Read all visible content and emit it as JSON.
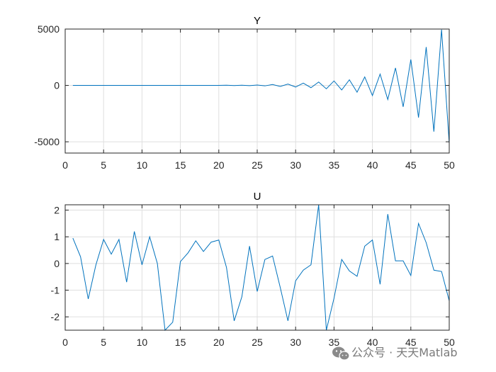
{
  "chart_data": [
    {
      "type": "line",
      "title": "Y",
      "xlabel": "",
      "ylabel": "",
      "xlim": [
        0,
        50
      ],
      "ylim": [
        -6000,
        5000
      ],
      "xticks": [
        0,
        5,
        10,
        15,
        20,
        25,
        30,
        35,
        40,
        45,
        50
      ],
      "yticks": [
        -5000,
        0,
        5000
      ],
      "grid": true,
      "color": "#0072BD",
      "series": [
        {
          "x": [
            1,
            2,
            3,
            4,
            5,
            6,
            7,
            8,
            9,
            10,
            11,
            12,
            13,
            14,
            15,
            16,
            17,
            18,
            19,
            20,
            21,
            22,
            23,
            24,
            25,
            26,
            27,
            28,
            29,
            30,
            31,
            32,
            33,
            34,
            35,
            36,
            37,
            38,
            39,
            40,
            41,
            42,
            43,
            44,
            45,
            46,
            47,
            48,
            49,
            50
          ],
          "values": [
            0,
            0,
            0,
            0,
            0,
            0,
            0,
            0,
            0,
            0,
            0,
            0,
            0,
            0,
            0,
            0,
            0,
            0,
            0,
            0,
            15,
            -10,
            20,
            -20,
            35,
            -40,
            80,
            -90,
            120,
            -140,
            200,
            -200,
            300,
            -300,
            400,
            -400,
            500,
            -600,
            750,
            -900,
            1000,
            -1250,
            1550,
            -1900,
            2300,
            -2850,
            3400,
            -4100,
            4950,
            -5150
          ]
        }
      ]
    },
    {
      "type": "line",
      "title": "U",
      "xlabel": "",
      "ylabel": "",
      "xlim": [
        0,
        50
      ],
      "ylim": [
        -2.5,
        2.2
      ],
      "xticks": [
        0,
        5,
        10,
        15,
        20,
        25,
        30,
        35,
        40,
        45,
        50
      ],
      "yticks": [
        -2,
        -1,
        0,
        1,
        2
      ],
      "grid": true,
      "color": "#0072BD",
      "series": [
        {
          "x": [
            1,
            2,
            3,
            4,
            5,
            6,
            7,
            8,
            9,
            10,
            11,
            12,
            13,
            14,
            15,
            16,
            17,
            18,
            19,
            20,
            21,
            22,
            23,
            24,
            25,
            26,
            27,
            28,
            29,
            30,
            31,
            32,
            33,
            34,
            35,
            36,
            37,
            38,
            39,
            40,
            41,
            42,
            43,
            44,
            45,
            46,
            47,
            48,
            49,
            50
          ],
          "values": [
            0.95,
            0.25,
            -1.33,
            -0.05,
            0.9,
            0.35,
            0.9,
            -0.7,
            1.2,
            -0.05,
            1.0,
            0.0,
            -2.5,
            -2.2,
            0.07,
            0.4,
            0.85,
            0.45,
            0.8,
            0.88,
            -0.15,
            -2.15,
            -1.25,
            0.65,
            -1.05,
            0.15,
            0.28,
            -0.9,
            -2.15,
            -0.65,
            -0.25,
            -0.05,
            2.2,
            -2.5,
            -1.3,
            0.15,
            -0.28,
            -0.48,
            0.65,
            0.88,
            -0.78,
            1.85,
            0.1,
            0.1,
            -0.45,
            1.5,
            0.78,
            -0.25,
            -0.3,
            -1.4
          ]
        }
      ]
    }
  ],
  "watermark": {
    "icon": "wechat-icon",
    "text": "公众号 · 天天Matlab"
  }
}
